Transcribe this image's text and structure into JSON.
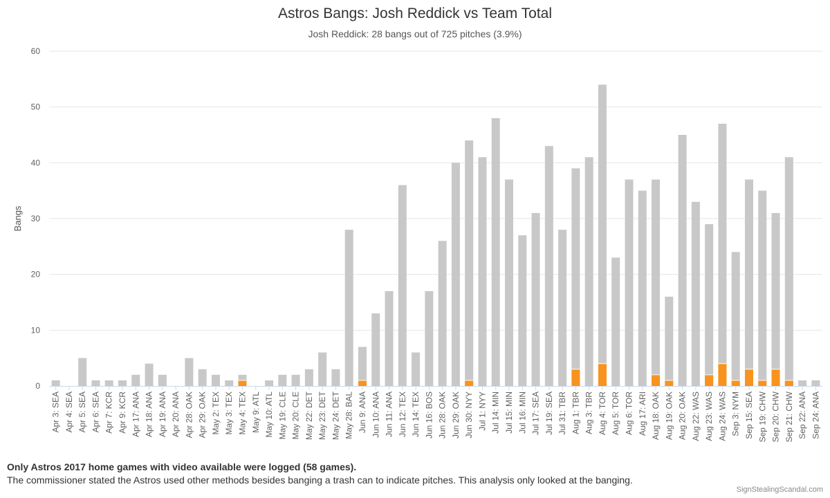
{
  "page": {
    "note_bold": "Only Astros 2017 home games with video available were logged (58 games).",
    "note": "The commissioner stated the Astros used other methods besides banging a trash can to indicate pitches. This analysis only looked at the banging.",
    "credits": "SignStealingScandal.com"
  },
  "chart_data": {
    "type": "bar",
    "stacked": true,
    "title": "Astros Bangs: Josh Reddick vs Team Total",
    "subtitle": "Josh Reddick: 28 bangs out of 725 pitches (3.9%)",
    "xlabel": "",
    "ylabel": "Bangs",
    "ylim": [
      0,
      60
    ],
    "yticks": [
      0,
      10,
      20,
      30,
      40,
      50,
      60
    ],
    "grid": true,
    "legend": "none",
    "categories": [
      "Apr 3: SEA",
      "Apr 4: SEA",
      "Apr 5: SEA",
      "Apr 6: SEA",
      "Apr 7: KCR",
      "Apr 9: KCR",
      "Apr 17: ANA",
      "Apr 18: ANA",
      "Apr 19: ANA",
      "Apr 20: ANA",
      "Apr 28: OAK",
      "Apr 29: OAK",
      "May 2: TEX",
      "May 3: TEX",
      "May 4: TEX",
      "May 9: ATL",
      "May 10: ATL",
      "May 19: CLE",
      "May 20: CLE",
      "May 22: DET",
      "May 23: DET",
      "May 24: DET",
      "May 28: BAL",
      "Jun 9: ANA",
      "Jun 10: ANA",
      "Jun 11: ANA",
      "Jun 12: TEX",
      "Jun 14: TEX",
      "Jun 16: BOS",
      "Jun 28: OAK",
      "Jun 29: OAK",
      "Jun 30: NYY",
      "Jul 1: NYY",
      "Jul 14: MIN",
      "Jul 15: MIN",
      "Jul 16: MIN",
      "Jul 17: SEA",
      "Jul 19: SEA",
      "Jul 31: TBR",
      "Aug 1: TBR",
      "Aug 3: TBR",
      "Aug 4: TOR",
      "Aug 5: TOR",
      "Aug 6: TOR",
      "Aug 17: ARI",
      "Aug 18: OAK",
      "Aug 19: OAK",
      "Aug 20: OAK",
      "Aug 22: WAS",
      "Aug 23: WAS",
      "Aug 24: WAS",
      "Sep 3: NYM",
      "Sep 15: SEA",
      "Sep 19: CHW",
      "Sep 20: CHW",
      "Sep 21: CHW",
      "Sep 22: ANA",
      "Sep 24: ANA"
    ],
    "series": [
      {
        "role": "team-total",
        "color": "#c8c8c8",
        "values": [
          1,
          0,
          5,
          1,
          1,
          1,
          2,
          4,
          2,
          0,
          5,
          3,
          2,
          1,
          2,
          0,
          1,
          2,
          2,
          3,
          6,
          3,
          28,
          7,
          13,
          17,
          36,
          6,
          17,
          26,
          40,
          44,
          41,
          48,
          37,
          27,
          31,
          43,
          28,
          39,
          41,
          54,
          23,
          37,
          35,
          37,
          16,
          45,
          33,
          29,
          47,
          24,
          37,
          35,
          31,
          41,
          1,
          1
        ]
      },
      {
        "role": "josh-reddick",
        "color": "#f7931e",
        "values": [
          0,
          0,
          0,
          0,
          0,
          0,
          0,
          0,
          0,
          0,
          0,
          0,
          0,
          0,
          1,
          0,
          0,
          0,
          0,
          0,
          0,
          0,
          0,
          1,
          0,
          0,
          0,
          0,
          0,
          0,
          0,
          1,
          0,
          0,
          0,
          0,
          0,
          0,
          0,
          3,
          0,
          4,
          0,
          0,
          0,
          2,
          1,
          0,
          0,
          2,
          4,
          1,
          3,
          1,
          3,
          1,
          0,
          0
        ]
      }
    ]
  }
}
